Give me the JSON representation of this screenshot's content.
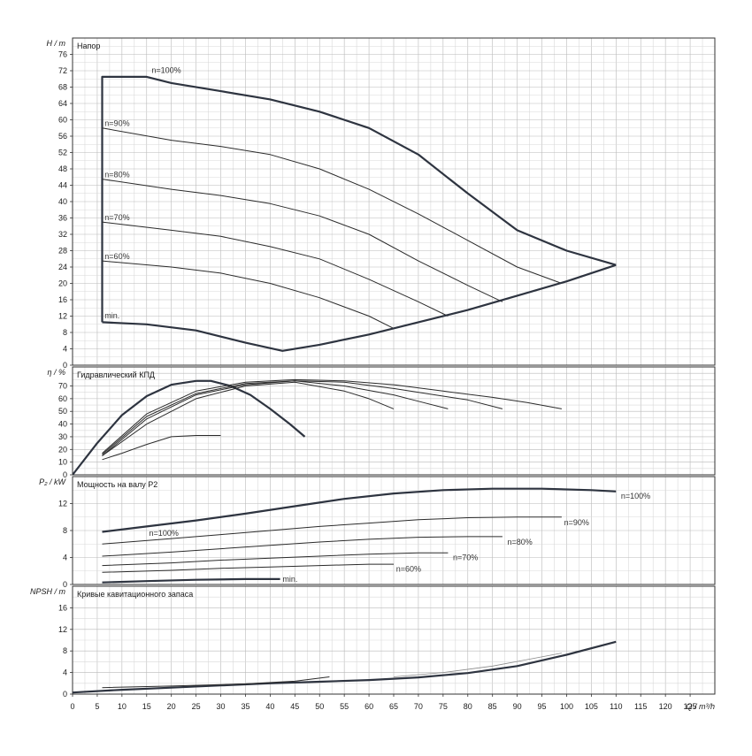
{
  "chart_data": [
    {
      "id": "head",
      "type": "line",
      "title": "Напор",
      "ylabel": "H / m",
      "ylim": [
        0,
        80
      ],
      "yticks": [
        "0",
        "4",
        "8",
        "12",
        "16",
        "20",
        "24",
        "28",
        "32",
        "36",
        "40",
        "44",
        "48",
        "52",
        "56",
        "60",
        "64",
        "68",
        "72",
        "76"
      ],
      "series": [
        {
          "name": "n=100%",
          "weight": "heavy",
          "x": [
            6,
            6,
            15,
            20,
            30,
            40,
            50,
            60,
            70,
            80,
            90,
            100,
            110
          ],
          "y": [
            10.5,
            70.5,
            70.5,
            69,
            67,
            65,
            62,
            58,
            51.5,
            42,
            33,
            28,
            24.5
          ]
        },
        {
          "name": "n=90%",
          "weight": "medium",
          "x": [
            6,
            20,
            30,
            40,
            50,
            60,
            70,
            80,
            90,
            99
          ],
          "y": [
            58,
            55,
            53.5,
            51.5,
            48,
            43,
            37,
            30.5,
            24,
            20
          ]
        },
        {
          "name": "n=80%",
          "weight": "medium",
          "x": [
            6,
            20,
            30,
            40,
            50,
            60,
            70,
            80,
            87
          ],
          "y": [
            45.5,
            43,
            41.5,
            39.5,
            36.5,
            32,
            25.5,
            19.5,
            15.5
          ]
        },
        {
          "name": "n=70%",
          "weight": "medium",
          "x": [
            6,
            20,
            30,
            40,
            50,
            60,
            70,
            76
          ],
          "y": [
            35,
            33,
            31.5,
            29,
            26,
            21,
            15.5,
            12
          ]
        },
        {
          "name": "n=60%",
          "weight": "medium",
          "x": [
            6,
            20,
            30,
            40,
            50,
            60,
            65
          ],
          "y": [
            25.5,
            24,
            22.5,
            20,
            16.5,
            12,
            9
          ]
        },
        {
          "name": "min.",
          "weight": "heavy",
          "x": [
            6,
            15,
            25,
            35,
            42.5,
            50,
            60,
            70,
            80,
            90,
            100,
            110
          ],
          "y": [
            10.5,
            10,
            8.5,
            5.5,
            3.5,
            5,
            7.5,
            10.5,
            13.5,
            17,
            20.5,
            24.5
          ]
        }
      ],
      "labels": [
        {
          "text": "n=100%",
          "x": 16,
          "y": 71.5
        },
        {
          "text": "n=90%",
          "x": 6.5,
          "y": 58.5
        },
        {
          "text": "n=80%",
          "x": 6.5,
          "y": 46
        },
        {
          "text": "n=70%",
          "x": 6.5,
          "y": 35.5
        },
        {
          "text": "n=60%",
          "x": 6.5,
          "y": 26
        },
        {
          "text": "min.",
          "x": 6.5,
          "y": 11.5
        }
      ]
    },
    {
      "id": "efficiency",
      "type": "line",
      "title": "Гидравлический КПД",
      "ylabel": "η / %",
      "ylim": [
        0,
        85
      ],
      "yticks": [
        "0",
        "10",
        "20",
        "30",
        "40",
        "50",
        "60",
        "70"
      ],
      "series": [
        {
          "name": "",
          "weight": "heavy",
          "x": [
            0,
            5,
            10,
            15,
            20,
            25,
            28,
            32,
            36,
            40,
            44,
            47
          ],
          "y": [
            0,
            25,
            47,
            62,
            71,
            74,
            74,
            70,
            63,
            52,
            40,
            30
          ]
        },
        {
          "name": "",
          "weight": "medium",
          "x": [
            6,
            10,
            15,
            20,
            25,
            30
          ],
          "y": [
            12,
            17,
            24,
            30,
            31,
            31
          ]
        },
        {
          "name": "",
          "weight": "medium",
          "x": [
            6,
            15,
            25,
            35,
            45,
            55,
            60,
            65
          ],
          "y": [
            15,
            40,
            60,
            70,
            73,
            66,
            60,
            52
          ]
        },
        {
          "name": "",
          "weight": "medium",
          "x": [
            6,
            15,
            25,
            35,
            45,
            55,
            65,
            70,
            76
          ],
          "y": [
            15,
            44,
            63,
            71,
            74,
            70,
            63,
            58,
            52
          ]
        },
        {
          "name": "",
          "weight": "medium",
          "x": [
            6,
            15,
            25,
            35,
            45,
            55,
            65,
            75,
            80,
            87
          ],
          "y": [
            16,
            46,
            64,
            72,
            74,
            73,
            68,
            62,
            59,
            52
          ]
        },
        {
          "name": "",
          "weight": "medium",
          "x": [
            6,
            15,
            25,
            35,
            45,
            55,
            65,
            75,
            85,
            92,
            99
          ],
          "y": [
            17,
            48,
            66,
            73,
            75,
            74,
            71,
            66,
            61,
            57,
            52
          ]
        }
      ]
    },
    {
      "id": "power",
      "type": "line",
      "title": "Мощность на валу P2",
      "ylabel": "P₂ / kW",
      "ylim": [
        0,
        16
      ],
      "yticks": [
        "0",
        "4",
        "8",
        "12"
      ],
      "series": [
        {
          "name": "n=100%",
          "weight": "heavy",
          "x": [
            6,
            15,
            25,
            35,
            45,
            55,
            65,
            75,
            85,
            95,
            105,
            110
          ],
          "y": [
            7.8,
            8.6,
            9.5,
            10.5,
            11.6,
            12.7,
            13.5,
            14,
            14.2,
            14.2,
            14,
            13.8
          ]
        },
        {
          "name": "n=90%",
          "weight": "medium",
          "x": [
            6,
            20,
            30,
            40,
            50,
            60,
            70,
            80,
            90,
            99
          ],
          "y": [
            6,
            6.8,
            7.4,
            8,
            8.6,
            9.1,
            9.6,
            9.9,
            10,
            10
          ]
        },
        {
          "name": "n=80%",
          "weight": "medium",
          "x": [
            6,
            20,
            30,
            40,
            50,
            60,
            70,
            80,
            87
          ],
          "y": [
            4.2,
            4.8,
            5.3,
            5.8,
            6.3,
            6.7,
            7,
            7.1,
            7.1
          ]
        },
        {
          "name": "n=70%",
          "weight": "medium",
          "x": [
            6,
            20,
            30,
            40,
            50,
            60,
            70,
            76
          ],
          "y": [
            2.8,
            3.2,
            3.6,
            3.9,
            4.2,
            4.5,
            4.7,
            4.7
          ]
        },
        {
          "name": "n=60%",
          "weight": "medium",
          "x": [
            6,
            20,
            30,
            40,
            50,
            60,
            65
          ],
          "y": [
            1.8,
            2.1,
            2.4,
            2.6,
            2.8,
            3,
            3
          ]
        },
        {
          "name": "min.",
          "weight": "heavy",
          "x": [
            6,
            15,
            25,
            35,
            42
          ],
          "y": [
            0.3,
            0.5,
            0.7,
            0.8,
            0.8
          ]
        }
      ],
      "labels": [
        {
          "text": "n=100%",
          "x": 111,
          "y": 12.7
        },
        {
          "text": "n=90%",
          "x": 99.5,
          "y": 8.8
        },
        {
          "text": "n=80%",
          "x": 88,
          "y": 5.9
        },
        {
          "text": "n=70%",
          "x": 77,
          "y": 3.6
        },
        {
          "text": "n=60%",
          "x": 65.5,
          "y": 1.9
        },
        {
          "text": "n=100%",
          "x": 15.5,
          "y": 7.2
        },
        {
          "text": "min.",
          "x": 42.5,
          "y": 0.4
        }
      ]
    },
    {
      "id": "npsh",
      "type": "line",
      "title": "Кривые кавитационного запаса",
      "ylabel": "NPSH / m",
      "ylim": [
        0,
        20
      ],
      "yticks": [
        "0",
        "4",
        "8",
        "12",
        "16"
      ],
      "series": [
        {
          "name": "",
          "weight": "heavy",
          "x": [
            0,
            10,
            20,
            30,
            40,
            50,
            60,
            70,
            80,
            90,
            100,
            110
          ],
          "y": [
            0.3,
            0.8,
            1.2,
            1.6,
            2,
            2.3,
            2.6,
            3.1,
            3.9,
            5.2,
            7.3,
            9.7
          ]
        },
        {
          "name": "",
          "weight": "medium",
          "x": [
            6,
            20,
            35,
            45,
            52
          ],
          "y": [
            1.2,
            1.5,
            1.9,
            2.4,
            3.2
          ]
        },
        {
          "name": "",
          "weight": "light",
          "x": [
            65,
            75,
            85,
            92,
            99
          ],
          "y": [
            3.2,
            4,
            5.2,
            6.4,
            7.6
          ]
        }
      ]
    }
  ],
  "x_axis": {
    "label": "Q / m³/h",
    "xlim": [
      0,
      130
    ],
    "ticks": [
      "0",
      "5",
      "10",
      "15",
      "20",
      "25",
      "30",
      "35",
      "40",
      "45",
      "50",
      "55",
      "60",
      "65",
      "70",
      "75",
      "80",
      "85",
      "90",
      "95",
      "100",
      "105",
      "110",
      "115",
      "120",
      "125"
    ]
  }
}
